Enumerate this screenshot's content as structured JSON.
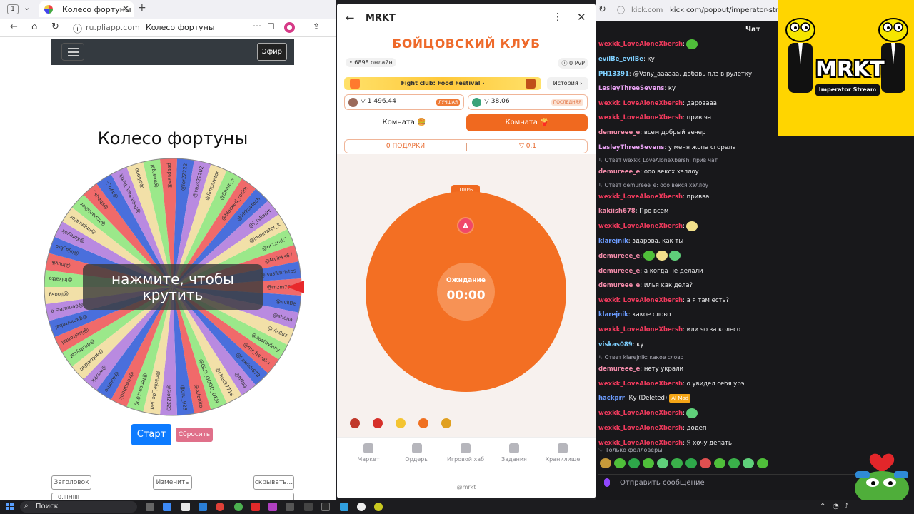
{
  "left_browser": {
    "tab_count": "1",
    "tab_title": "Колесо фортуны",
    "url_host": "ru.pliapp.com",
    "url_page": "Колесо фортуны",
    "nav_button": "Эфир",
    "wheel_title": "Колесо фортуны",
    "overlay_text": "нажмите, чтобы крутить",
    "start_label": "Старт",
    "reset_label": "Сбросить",
    "buttons": [
      "Заголовок",
      "Изменить",
      "скрывать..."
    ],
    "input_value": "0.IIIHIIII",
    "wheel_labels": [
      "@mzm7777",
      "@evilBe",
      "@shena",
      "@visduz",
      "@zastoylany",
      "@mr_havalor",
      "@kakiish678",
      "@tiflpg",
      "@check7718",
      "@GLD_GOOD_DEN",
      "@Alfanito",
      "@oru_923",
      "@slot2323",
      "@daniel_de_lad",
      "@fenom1000",
      "@kowabonk",
      "@zoiomo",
      "@wexkk",
      "@antoxidan",
      "@dmitrycat",
      "@lisefrontal",
      "@gamerrebel",
      "@demuree_e",
      "@lioosg",
      "@lolkatto",
      "@lovvik",
      "@ilija_bro",
      "@Kofeyok",
      "@imperator",
      "@tralanisher",
      "@shaqs_",
      "@ayo_z",
      "@PeterPan_Tortik",
      "@sillpoo",
      "@nosrgal",
      "@vasdasd",
      "@lor22222",
      "@vass22202",
      "@limparetor",
      "@Sharo_s",
      "@blacked_rosim",
      "@kirkovtash",
      "@i_ts5adrt",
      "@imperator_k",
      "@pr1zrak7",
      "@Mvinks67",
      "@isusikhristos"
    ]
  },
  "mrkt": {
    "app_name": "MRKT",
    "club_title": "БОЙЦОВСКИЙ КЛУБ",
    "online": "• 6898 онлайн",
    "pvp": "ⓘ 0 PvP",
    "banner": "Fight club: Food Festival",
    "history": "История",
    "price_best": "▽ 1 496.44",
    "badge_best": "ЛУЧШАЯ",
    "price_last": "▽ 38.06",
    "badge_last": "ПОСЛЕДНЯЯ",
    "room1": "Комната 🍔",
    "room2": "Комната 🍟",
    "gifts": "0 ПОДАРКИ",
    "gifts_value": "▽ 0.1",
    "percent": "100%",
    "player": "A",
    "status": "Ожидание",
    "timer": "00:00",
    "nav": [
      "Маркет",
      "Ордеры",
      "Игровой хаб",
      "Задания",
      "Хранилище"
    ],
    "handle": "@mrkt"
  },
  "chat": {
    "url_host": "kick.com",
    "url_path": "kick.com/popout/imperator-stream",
    "title": "Чат",
    "messages": [
      {
        "user": "wexkk_LoveAloneXbersh",
        "color": "#f23a5d",
        "text": "",
        "emote": true
      },
      {
        "user": "evilBe_evilBe",
        "color": "#7fd0ff",
        "text": ": ку"
      },
      {
        "user": "PH13391",
        "color": "#7fd0ff",
        "text": ": @Vany_aaaaaa, добавь плз в рулетку"
      },
      {
        "user": "LesleyThreeSevens",
        "color": "#e6a0f0",
        "text": ": ку"
      },
      {
        "user": "wexkk_LoveAloneXbersh",
        "color": "#f23a5d",
        "text": ": даровааа"
      },
      {
        "user": "wexkk_LoveAloneXbersh",
        "color": "#f23a5d",
        "text": ": прив чат"
      },
      {
        "user": "demureee_e",
        "color": "#f08aa8",
        "text": ": всем добрый вечер"
      },
      {
        "user": "LesleyThreeSevens",
        "color": "#e6a0f0",
        "text": ": у меня жопа сгорела"
      },
      {
        "reply": "↳ Ответ wexkk_LoveAloneXbersh: прив чат"
      },
      {
        "user": "demureee_e",
        "color": "#f08aa8",
        "text": ": ооо вексх хэллоу"
      },
      {
        "reply": "↳ Ответ demureee_e: ооо векся хэллоу"
      },
      {
        "user": "wexkk_LoveAloneXbersh",
        "color": "#f23a5d",
        "text": ": привва"
      },
      {
        "user": "kakiish678",
        "color": "#f08aa8",
        "text": ": Про всем"
      },
      {
        "user": "wexkk_LoveAloneXbersh",
        "color": "#f23a5d",
        "text": "",
        "emote": true
      },
      {
        "user": "klarejnik",
        "color": "#6c9cff",
        "text": ": здарова, как ты"
      },
      {
        "user": "demureee_e",
        "color": "#f08aa8",
        "text": "",
        "emote": true
      },
      {
        "user": "demureee_e",
        "color": "#f08aa8",
        "text": ": а когда не делали"
      },
      {
        "user": "demureee_e",
        "color": "#f08aa8",
        "text": ": илья как дела?"
      },
      {
        "user": "wexkk_LoveAloneXbersh",
        "color": "#f23a5d",
        "text": ": а я там есть?"
      },
      {
        "user": "klarejnik",
        "color": "#6c9cff",
        "text": ": какое слово"
      },
      {
        "user": "wexkk_LoveAloneXbersh",
        "color": "#f23a5d",
        "text": ": или чо за колесо"
      },
      {
        "user": "viskas089",
        "color": "#7fd0ff",
        "text": ": ку"
      },
      {
        "reply": "↳ Ответ klarejnik: какое слово"
      },
      {
        "user": "demureee_e",
        "color": "#f08aa8",
        "text": ": нету украли"
      },
      {
        "user": "wexkk_LoveAloneXbersh",
        "color": "#f23a5d",
        "text": ": о увидел себя урэ"
      },
      {
        "user": "hackprr",
        "color": "#6c9cff",
        "text": ": Ку (Deleted)",
        "badge": "AI Mod"
      },
      {
        "user": "wexkk_LoveAloneXbersh",
        "color": "#f23a5d",
        "text": "",
        "emote": true
      },
      {
        "user": "wexkk_LoveAloneXbersh",
        "color": "#f23a5d",
        "text": ": додеп"
      },
      {
        "user": "wexkk_LoveAloneXbersh",
        "color": "#f23a5d",
        "text": ": Я хочу депать"
      }
    ],
    "follow_note": "♡ Только фолловеры",
    "input_placeholder": "Отправить сообщение",
    "logo_text": "MRKT",
    "logo_sub": "Imperator Stream"
  },
  "taskbar": {
    "search_placeholder": "Поиск"
  }
}
